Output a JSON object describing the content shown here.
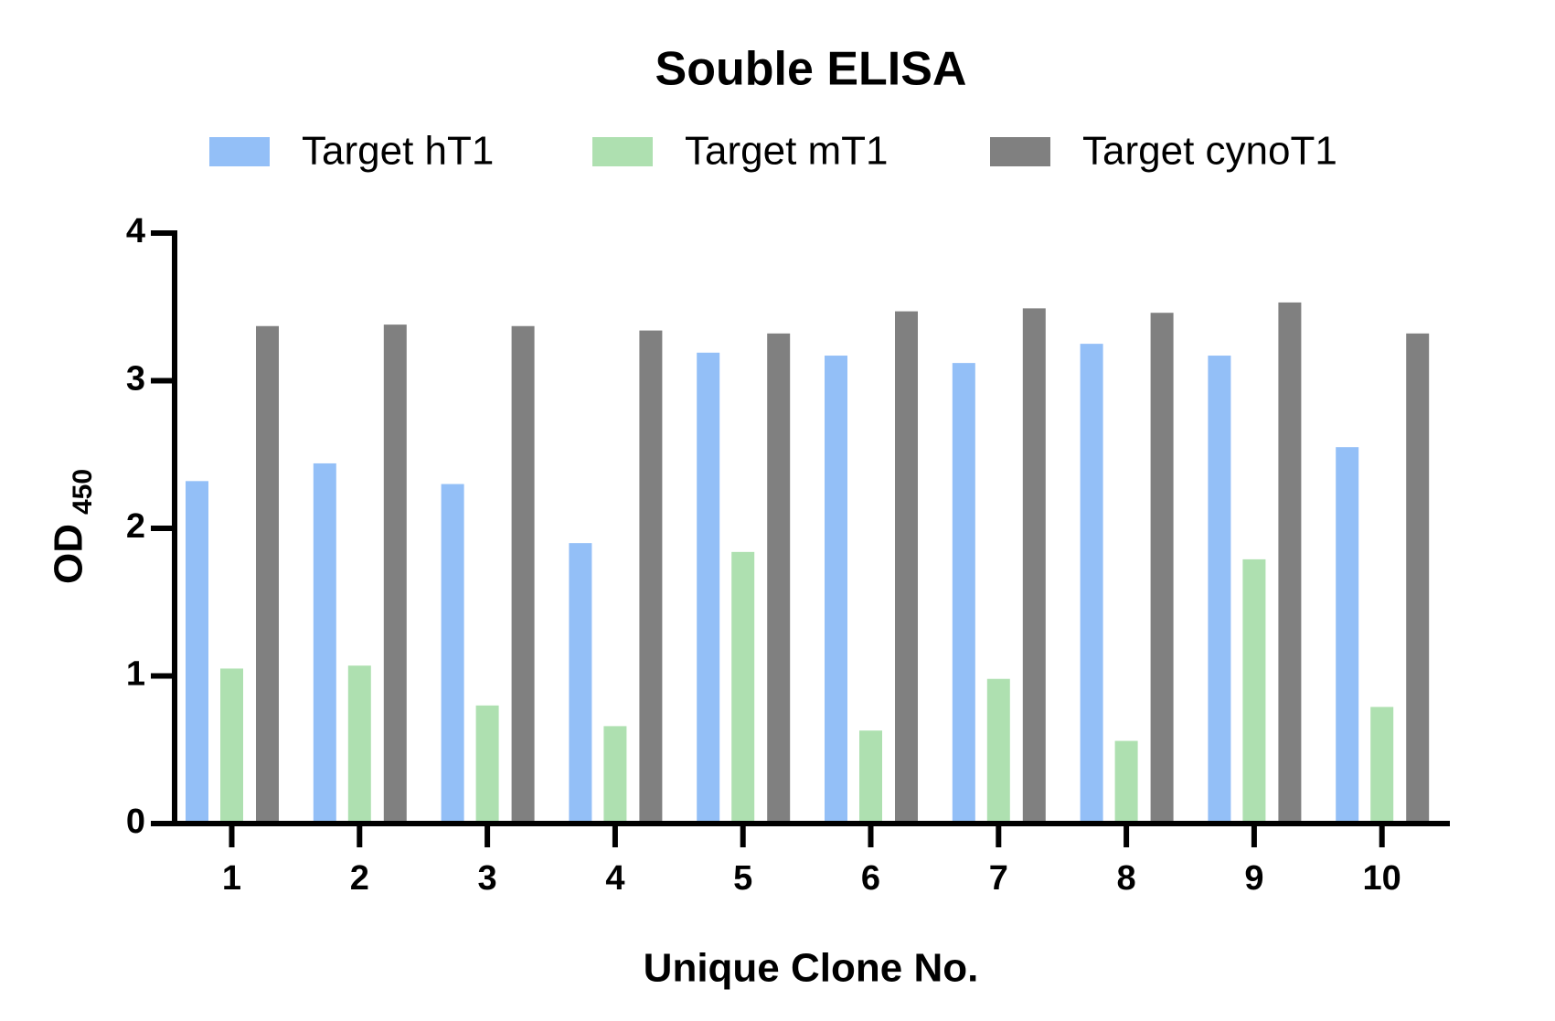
{
  "chart_data": {
    "type": "bar",
    "title": "Souble ELISA",
    "x_label": "Unique Clone No.",
    "y_label": "OD",
    "y_label_subscript": "450",
    "categories": [
      "1",
      "2",
      "3",
      "4",
      "5",
      "6",
      "7",
      "8",
      "9",
      "10"
    ],
    "series": [
      {
        "name": "Target hT1",
        "color": "#93bff7",
        "values": [
          2.32,
          2.44,
          2.3,
          1.9,
          3.19,
          3.17,
          3.12,
          3.25,
          3.17,
          2.55
        ]
      },
      {
        "name": "Target mT1",
        "color": "#aee0b0",
        "values": [
          1.05,
          1.07,
          0.8,
          0.66,
          1.84,
          0.63,
          0.98,
          0.56,
          1.79,
          0.79
        ]
      },
      {
        "name": "Target cynoT1",
        "color": "#808080",
        "values": [
          3.37,
          3.38,
          3.37,
          3.34,
          3.32,
          3.47,
          3.49,
          3.46,
          3.53,
          3.32
        ]
      }
    ],
    "ylim": [
      0,
      4
    ],
    "yticks": [
      0,
      1,
      2,
      3,
      4
    ],
    "grid": false,
    "legend": "top"
  }
}
